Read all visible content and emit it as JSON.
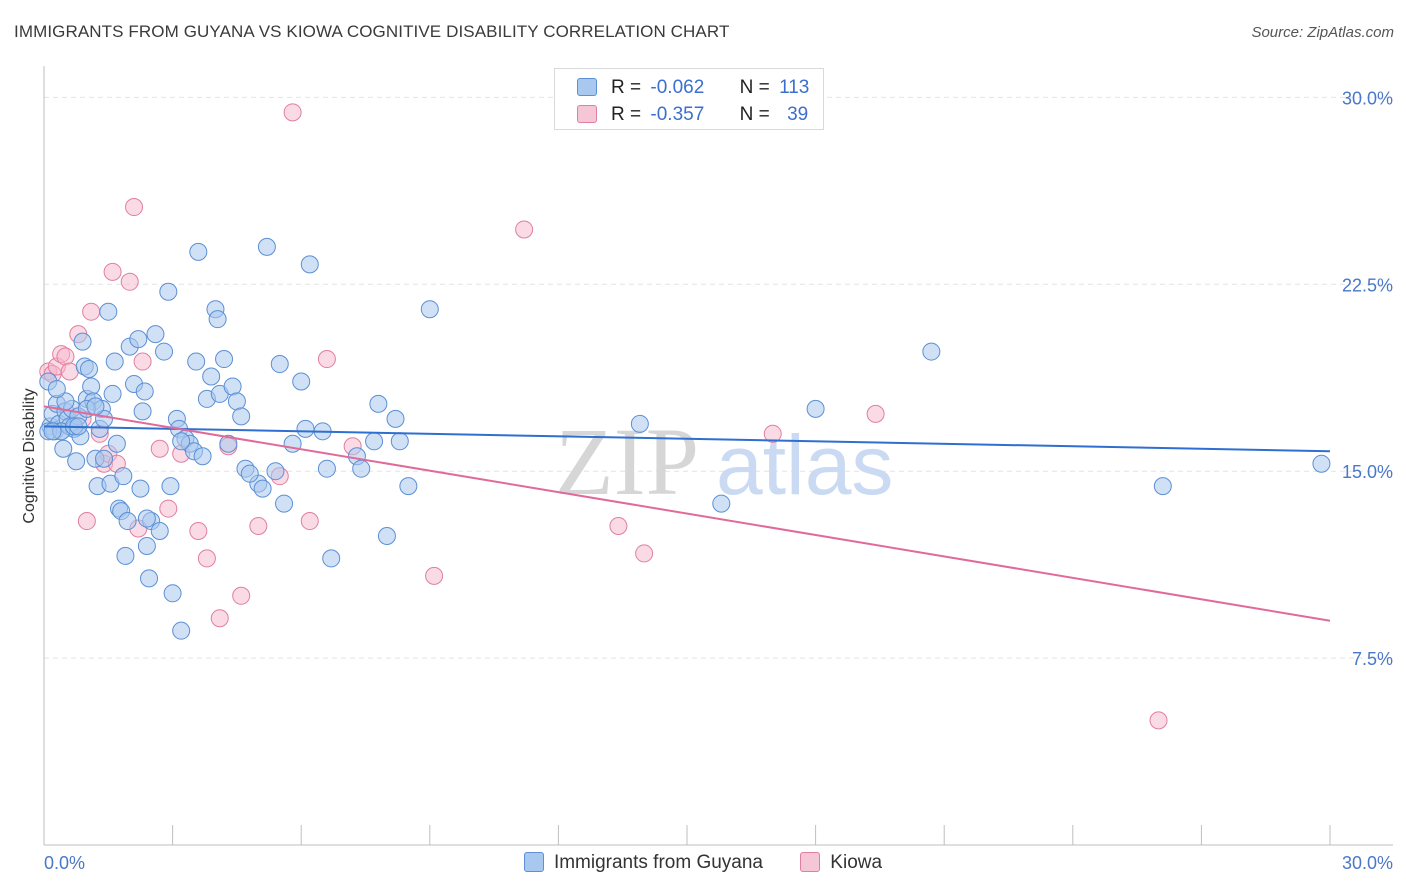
{
  "header": {
    "title": "IMMIGRANTS FROM GUYANA VS KIOWA COGNITIVE DISABILITY CORRELATION CHART",
    "source": "Source: ZipAtlas.com"
  },
  "legend": {
    "series1": {
      "r_label": "R =",
      "r_value": "-0.062",
      "n_label": "N =",
      "n_value": "113"
    },
    "series2": {
      "r_label": "R =",
      "r_value": "-0.357",
      "n_label": "N =",
      "n_value": "39"
    }
  },
  "colors": {
    "blue_fill": "#a9c8ef",
    "blue_stroke": "#5b8fd6",
    "blue_line": "#2f6fcf",
    "pink_fill": "#f5b8cb",
    "pink_stroke": "#e07fa0",
    "pink_line": "#e06a98",
    "tick_text": "#4a78c8",
    "grid": "#e4e4e4"
  },
  "chart_data": {
    "type": "scatter",
    "title": "IMMIGRANTS FROM GUYANA VS KIOWA COGNITIVE DISABILITY CORRELATION CHART",
    "xlabel": "",
    "ylabel": "Cognitive Disability",
    "xlim": [
      0,
      30
    ],
    "ylim": [
      0,
      31.5
    ],
    "x_tick_labels": [
      "0.0%",
      "30.0%"
    ],
    "y_ticks": [
      {
        "value": 7.5,
        "label": "7.5%"
      },
      {
        "value": 15.0,
        "label": "15.0%"
      },
      {
        "value": 22.5,
        "label": "22.5%"
      },
      {
        "value": 30.0,
        "label": "30.0%"
      }
    ],
    "watermark": {
      "zip": "ZIP",
      "atlas": "atlas"
    },
    "series": [
      {
        "name": "Immigrants from Guyana",
        "r": -0.062,
        "n": 113,
        "trend": {
          "x": [
            0,
            30
          ],
          "y": [
            16.8,
            15.8
          ]
        },
        "points": [
          [
            0.1,
            18.6
          ],
          [
            0.15,
            16.8
          ],
          [
            0.2,
            17.3
          ],
          [
            0.25,
            16.6
          ],
          [
            0.3,
            17.7
          ],
          [
            0.35,
            16.9
          ],
          [
            0.4,
            16.6
          ],
          [
            0.45,
            15.9
          ],
          [
            0.5,
            17.4
          ],
          [
            0.55,
            17.1
          ],
          [
            0.6,
            16.8
          ],
          [
            0.65,
            17.5
          ],
          [
            0.7,
            16.7
          ],
          [
            0.75,
            15.4
          ],
          [
            0.8,
            17.2
          ],
          [
            0.85,
            16.4
          ],
          [
            0.9,
            20.2
          ],
          [
            0.95,
            19.2
          ],
          [
            1.0,
            17.9
          ],
          [
            1.05,
            19.1
          ],
          [
            1.1,
            18.4
          ],
          [
            1.15,
            17.8
          ],
          [
            1.2,
            15.5
          ],
          [
            1.25,
            14.4
          ],
          [
            1.3,
            16.7
          ],
          [
            1.35,
            17.5
          ],
          [
            1.4,
            17.1
          ],
          [
            1.5,
            21.4
          ],
          [
            1.55,
            14.5
          ],
          [
            1.6,
            18.1
          ],
          [
            1.65,
            19.4
          ],
          [
            1.7,
            16.1
          ],
          [
            1.75,
            13.5
          ],
          [
            1.8,
            13.4
          ],
          [
            1.85,
            14.8
          ],
          [
            1.9,
            11.6
          ],
          [
            1.95,
            13.0
          ],
          [
            2.0,
            20.0
          ],
          [
            2.1,
            18.5
          ],
          [
            2.2,
            20.3
          ],
          [
            2.25,
            14.3
          ],
          [
            2.3,
            17.4
          ],
          [
            2.35,
            18.2
          ],
          [
            2.4,
            12.0
          ],
          [
            2.45,
            10.7
          ],
          [
            2.5,
            13.0
          ],
          [
            2.6,
            20.5
          ],
          [
            2.7,
            12.6
          ],
          [
            2.8,
            19.8
          ],
          [
            2.9,
            22.2
          ],
          [
            2.95,
            14.4
          ],
          [
            3.0,
            10.1
          ],
          [
            3.1,
            17.1
          ],
          [
            3.15,
            16.7
          ],
          [
            3.2,
            8.6
          ],
          [
            3.3,
            16.3
          ],
          [
            3.4,
            16.1
          ],
          [
            3.5,
            15.8
          ],
          [
            3.55,
            19.4
          ],
          [
            3.6,
            23.8
          ],
          [
            3.7,
            15.6
          ],
          [
            3.8,
            17.9
          ],
          [
            3.9,
            18.8
          ],
          [
            4.0,
            21.5
          ],
          [
            4.05,
            21.1
          ],
          [
            4.1,
            18.1
          ],
          [
            4.2,
            19.5
          ],
          [
            4.3,
            16.1
          ],
          [
            4.4,
            18.4
          ],
          [
            4.5,
            17.8
          ],
          [
            4.6,
            17.2
          ],
          [
            4.7,
            15.1
          ],
          [
            5.0,
            14.5
          ],
          [
            5.2,
            24.0
          ],
          [
            5.4,
            15.0
          ],
          [
            5.5,
            19.3
          ],
          [
            5.6,
            13.7
          ],
          [
            5.8,
            16.1
          ],
          [
            6.0,
            18.6
          ],
          [
            6.1,
            16.7
          ],
          [
            6.2,
            23.3
          ],
          [
            6.5,
            16.6
          ],
          [
            6.6,
            15.1
          ],
          [
            6.7,
            11.5
          ],
          [
            7.3,
            15.6
          ],
          [
            7.4,
            15.1
          ],
          [
            7.7,
            16.2
          ],
          [
            7.8,
            17.7
          ],
          [
            8.0,
            12.4
          ],
          [
            8.2,
            17.1
          ],
          [
            8.3,
            16.2
          ],
          [
            8.5,
            14.4
          ],
          [
            9.0,
            21.5
          ],
          [
            13.9,
            16.9
          ],
          [
            15.8,
            13.7
          ],
          [
            18.0,
            17.5
          ],
          [
            20.7,
            19.8
          ],
          [
            26.1,
            14.4
          ],
          [
            29.8,
            15.3
          ],
          [
            0.1,
            16.6
          ],
          [
            0.4,
            16.6
          ],
          [
            0.5,
            17.8
          ],
          [
            0.7,
            16.8
          ],
          [
            0.8,
            16.8
          ],
          [
            1.0,
            17.5
          ],
          [
            1.2,
            17.6
          ],
          [
            0.3,
            18.3
          ],
          [
            0.2,
            16.6
          ],
          [
            1.4,
            15.5
          ],
          [
            3.2,
            16.2
          ],
          [
            2.4,
            13.1
          ],
          [
            4.8,
            14.9
          ],
          [
            5.1,
            14.3
          ]
        ]
      },
      {
        "name": "Kiowa",
        "r": -0.357,
        "n": 39,
        "trend": {
          "x": [
            0,
            30
          ],
          "y": [
            17.6,
            9.0
          ]
        },
        "points": [
          [
            0.1,
            19.0
          ],
          [
            0.2,
            18.9
          ],
          [
            0.3,
            19.2
          ],
          [
            0.4,
            19.7
          ],
          [
            0.5,
            19.6
          ],
          [
            0.6,
            19.0
          ],
          [
            0.8,
            20.5
          ],
          [
            0.9,
            17.1
          ],
          [
            1.0,
            13.0
          ],
          [
            1.1,
            21.4
          ],
          [
            1.3,
            16.5
          ],
          [
            1.4,
            15.3
          ],
          [
            1.5,
            15.7
          ],
          [
            1.6,
            23.0
          ],
          [
            1.7,
            15.3
          ],
          [
            2.0,
            22.6
          ],
          [
            2.1,
            25.6
          ],
          [
            2.2,
            12.7
          ],
          [
            2.3,
            19.4
          ],
          [
            2.7,
            15.9
          ],
          [
            2.9,
            13.5
          ],
          [
            3.2,
            15.7
          ],
          [
            3.6,
            12.6
          ],
          [
            3.8,
            11.5
          ],
          [
            4.1,
            9.1
          ],
          [
            4.3,
            16.0
          ],
          [
            4.6,
            10.0
          ],
          [
            5.0,
            12.8
          ],
          [
            5.5,
            14.8
          ],
          [
            5.8,
            29.4
          ],
          [
            6.2,
            13.0
          ],
          [
            6.6,
            19.5
          ],
          [
            7.2,
            16.0
          ],
          [
            9.1,
            10.8
          ],
          [
            11.2,
            24.7
          ],
          [
            13.4,
            12.8
          ],
          [
            14.0,
            11.7
          ],
          [
            17.0,
            16.5
          ],
          [
            19.4,
            17.3
          ]
        ],
        "outlier": [
          26.0,
          5.0
        ]
      }
    ]
  },
  "bottom_legend": {
    "item1": "Immigrants from Guyana",
    "item2": "Kiowa"
  }
}
